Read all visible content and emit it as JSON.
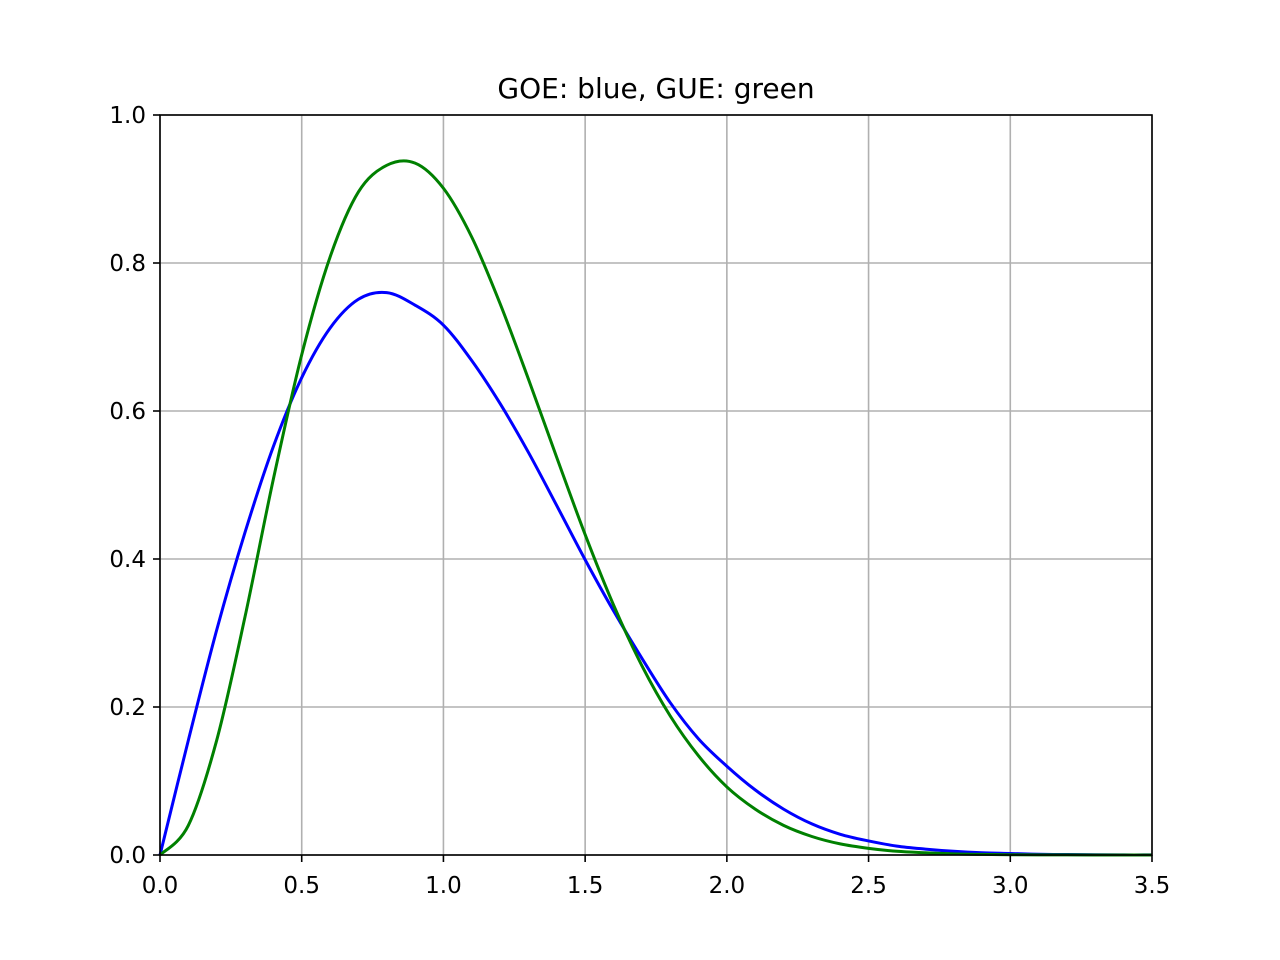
{
  "chart_data": {
    "type": "line",
    "title": "GOE: blue, GUE: green",
    "xlabel": "",
    "ylabel": "",
    "xlim": [
      0.0,
      3.5
    ],
    "ylim": [
      0.0,
      1.0
    ],
    "grid": true,
    "x_ticks": [
      "0.0",
      "0.5",
      "1.0",
      "1.5",
      "2.0",
      "2.5",
      "3.0",
      "3.5"
    ],
    "y_ticks": [
      "0.0",
      "0.2",
      "0.4",
      "0.6",
      "0.8",
      "1.0"
    ],
    "grid_color": "#b0b0b0",
    "series": [
      {
        "color": "#0000ff",
        "x": [
          0.0,
          0.1,
          0.2,
          0.3,
          0.4,
          0.5,
          0.6,
          0.7,
          0.8,
          0.9,
          1.0,
          1.1,
          1.2,
          1.3,
          1.4,
          1.5,
          1.6,
          1.7,
          1.8,
          1.9,
          2.0,
          2.1,
          2.2,
          2.3,
          2.4,
          2.5,
          2.6,
          2.7,
          2.8,
          2.9,
          3.0,
          3.1,
          3.2,
          3.3,
          3.4,
          3.5
        ],
        "values": [
          0.0,
          0.155,
          0.304,
          0.436,
          0.552,
          0.645,
          0.712,
          0.751,
          0.76,
          0.743,
          0.716,
          0.668,
          0.61,
          0.544,
          0.472,
          0.399,
          0.33,
          0.266,
          0.206,
          0.157,
          0.12,
          0.088,
          0.062,
          0.042,
          0.028,
          0.019,
          0.012,
          0.008,
          0.005,
          0.003,
          0.002,
          0.001,
          0.0006,
          0.0003,
          0.0001,
          0.0001
        ]
      },
      {
        "color": "#008000",
        "x": [
          0.0,
          0.1,
          0.2,
          0.3,
          0.4,
          0.5,
          0.6,
          0.7,
          0.8,
          0.9,
          1.0,
          1.1,
          1.2,
          1.3,
          1.4,
          1.5,
          1.6,
          1.7,
          1.8,
          1.9,
          2.0,
          2.1,
          2.2,
          2.3,
          2.4,
          2.5,
          2.6,
          2.7,
          2.8,
          2.9,
          3.0,
          3.1,
          3.2,
          3.3,
          3.4,
          3.5
        ],
        "values": [
          0.0,
          0.04,
          0.155,
          0.322,
          0.508,
          0.676,
          0.808,
          0.896,
          0.932,
          0.935,
          0.901,
          0.835,
          0.745,
          0.643,
          0.537,
          0.433,
          0.338,
          0.256,
          0.188,
          0.134,
          0.092,
          0.062,
          0.04,
          0.025,
          0.015,
          0.009,
          0.005,
          0.003,
          0.0015,
          0.0008,
          0.0004,
          0.0002,
          0.0001,
          0.0,
          0.0,
          0.0
        ]
      }
    ]
  }
}
